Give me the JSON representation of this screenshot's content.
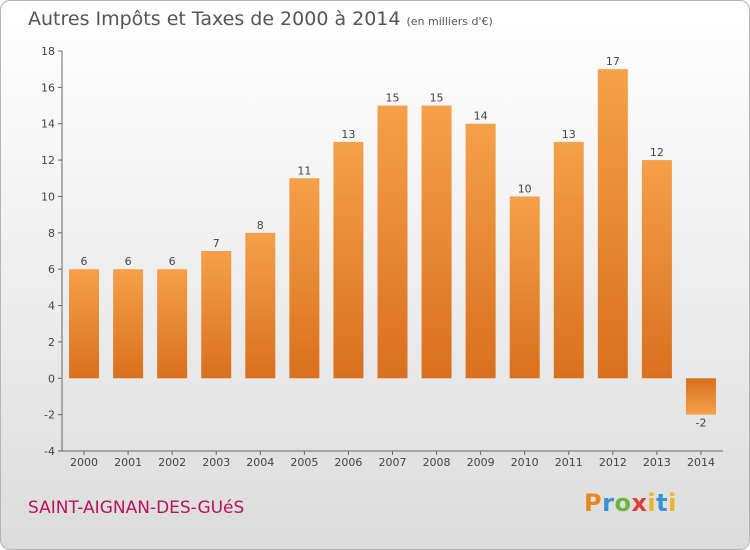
{
  "header": {
    "title": "Autres Impôts et Taxes de 2000 à 2014",
    "unit": "(en milliers d'€)"
  },
  "footer": {
    "commune": "SAINT-AIGNAN-DES-GUéS"
  },
  "logo": {
    "p": "P",
    "r": "r",
    "o": "o",
    "x": "x",
    "i": "i",
    "t": "t",
    "i2": "i"
  },
  "colors": {
    "bar": "#f5a04a",
    "bar_dark": "#d9701e",
    "axis": "#666666",
    "grid": "#bbbbbb",
    "commune": "#b5135a"
  },
  "chart_data": {
    "type": "bar",
    "title": "Autres Impôts et Taxes de 2000 à 2014",
    "categories": [
      "2000",
      "2001",
      "2002",
      "2003",
      "2004",
      "2005",
      "2006",
      "2007",
      "2008",
      "2009",
      "2010",
      "2011",
      "2012",
      "2013",
      "2014"
    ],
    "values": [
      6,
      6,
      6,
      7,
      8,
      11,
      13,
      15,
      15,
      14,
      10,
      13,
      17,
      12,
      -2
    ],
    "ylim": [
      -4,
      18
    ],
    "yticks": [
      -4,
      -2,
      0,
      2,
      4,
      6,
      8,
      10,
      12,
      14,
      16,
      18
    ],
    "grid": false
  }
}
